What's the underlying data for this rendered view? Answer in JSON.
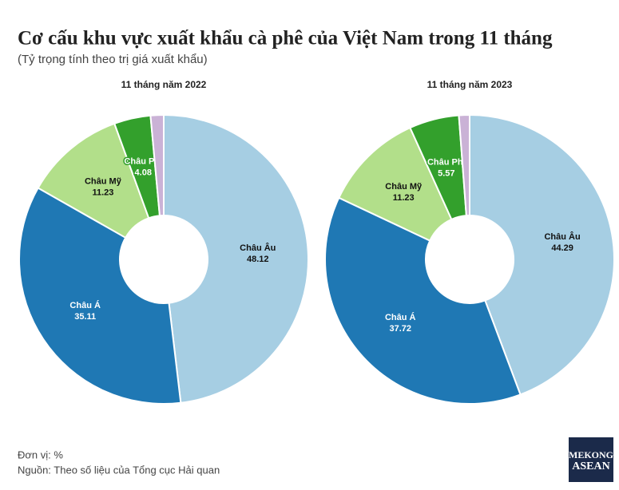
{
  "title": "Cơ cấu khu vực xuất khẩu cà phê của Việt Nam trong 11 tháng",
  "subtitle": "(Tỷ trọng tính theo trị giá xuất khẩu)",
  "chart_data": [
    {
      "type": "donut",
      "title": "11 tháng năm 2022",
      "categories": [
        "Châu Âu",
        "Châu Á",
        "Châu Mỹ",
        "Châu Phi",
        null
      ],
      "values": [
        48.12,
        35.11,
        11.23,
        4.08,
        1.46
      ],
      "colors": [
        "#a6cee3",
        "#1f78b4",
        "#b2df8a",
        "#33a02c",
        "#cab2d6"
      ],
      "label_colors": [
        "#111111",
        "#ffffff",
        "#111111",
        "#ffffff",
        "#111111"
      ]
    },
    {
      "type": "donut",
      "title": "11 tháng năm 2023",
      "categories": [
        "Châu Âu",
        "Châu Á",
        "Châu Mỹ",
        "Châu Phi",
        null
      ],
      "values": [
        44.29,
        37.72,
        11.23,
        5.57,
        1.19
      ],
      "colors": [
        "#a6cee3",
        "#1f78b4",
        "#b2df8a",
        "#33a02c",
        "#cab2d6"
      ],
      "label_colors": [
        "#111111",
        "#ffffff",
        "#111111",
        "#ffffff",
        "#111111"
      ]
    }
  ],
  "footer": {
    "unit": "Đơn vị: %",
    "source": "Nguồn: Theo số liệu của Tổng cục Hải quan"
  },
  "logo": {
    "line1": "MEKONG",
    "line2": "ASEAN"
  }
}
